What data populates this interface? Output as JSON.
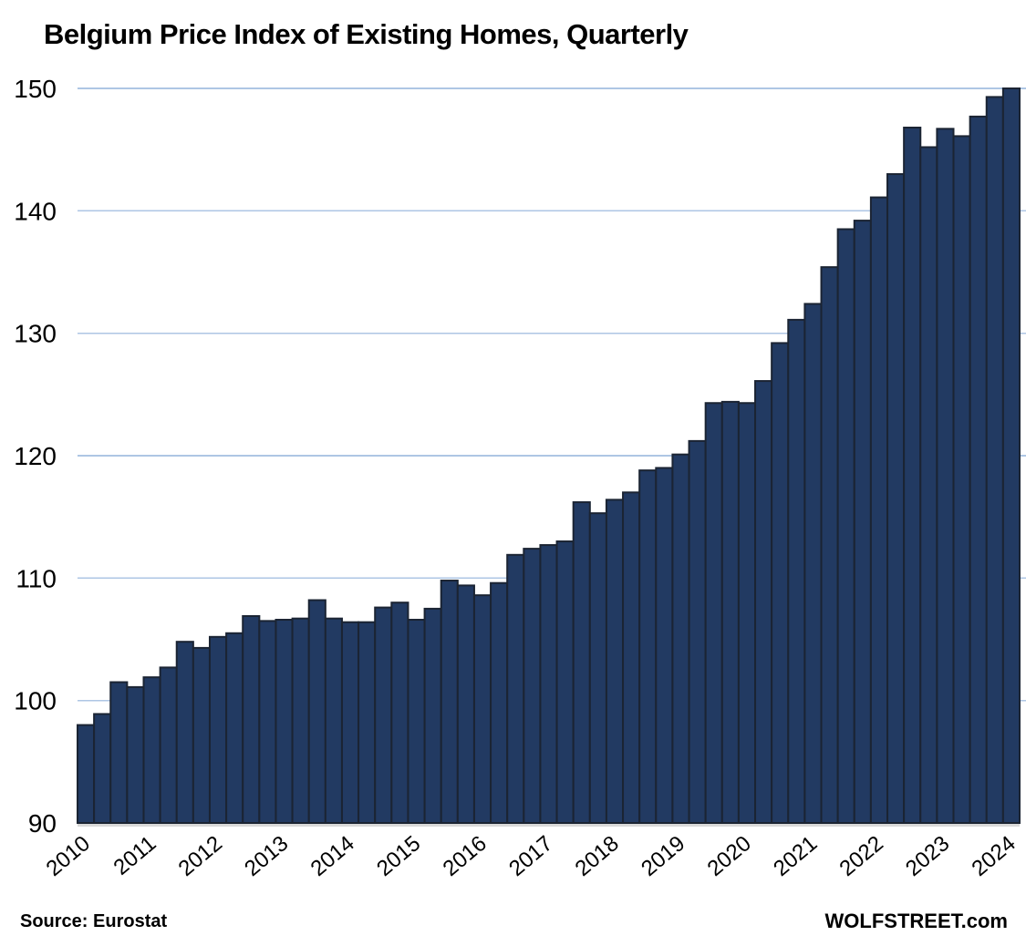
{
  "page": {
    "title": "Belgium Price Index of Existing Homes, Quarterly",
    "source": "Source: Eurostat",
    "brand": "WOLFSTREET.com"
  },
  "chart_data": {
    "type": "bar",
    "title": "Belgium Price Index of Existing Homes, Quarterly",
    "xlabel": "",
    "ylabel": "",
    "ylim": [
      90,
      150
    ],
    "yticks": [
      90,
      100,
      110,
      120,
      130,
      140,
      150
    ],
    "grid": "horizontal",
    "legend": "none",
    "x_tick_labels": [
      "2010",
      "2011",
      "2012",
      "2013",
      "2014",
      "2015",
      "2016",
      "2017",
      "2018",
      "2019",
      "2020",
      "2021",
      "2022",
      "2023",
      "2024"
    ],
    "categories": [
      "2010 Q1",
      "2010 Q2",
      "2010 Q3",
      "2010 Q4",
      "2011 Q1",
      "2011 Q2",
      "2011 Q3",
      "2011 Q4",
      "2012 Q1",
      "2012 Q2",
      "2012 Q3",
      "2012 Q4",
      "2013 Q1",
      "2013 Q2",
      "2013 Q3",
      "2013 Q4",
      "2014 Q1",
      "2014 Q2",
      "2014 Q3",
      "2014 Q4",
      "2015 Q1",
      "2015 Q2",
      "2015 Q3",
      "2015 Q4",
      "2016 Q1",
      "2016 Q2",
      "2016 Q3",
      "2016 Q4",
      "2017 Q1",
      "2017 Q2",
      "2017 Q3",
      "2017 Q4",
      "2018 Q1",
      "2018 Q2",
      "2018 Q3",
      "2018 Q4",
      "2019 Q1",
      "2019 Q2",
      "2019 Q3",
      "2019 Q4",
      "2020 Q1",
      "2020 Q2",
      "2020 Q3",
      "2020 Q4",
      "2021 Q1",
      "2021 Q2",
      "2021 Q3",
      "2021 Q4",
      "2022 Q1",
      "2022 Q2",
      "2022 Q3",
      "2022 Q4",
      "2023 Q1",
      "2023 Q2",
      "2023 Q3",
      "2023 Q4",
      "2024 Q1"
    ],
    "values": [
      98.0,
      98.9,
      101.5,
      101.1,
      101.9,
      102.7,
      104.8,
      104.3,
      105.2,
      105.5,
      106.9,
      106.5,
      106.6,
      106.7,
      108.2,
      106.7,
      106.4,
      106.4,
      107.6,
      108.0,
      106.6,
      107.5,
      109.8,
      109.4,
      108.6,
      109.6,
      111.9,
      112.4,
      112.7,
      113.0,
      116.2,
      115.3,
      116.4,
      117.0,
      118.8,
      119.0,
      120.1,
      121.2,
      124.3,
      124.4,
      124.3,
      126.1,
      129.2,
      131.1,
      132.4,
      135.4,
      138.5,
      139.2,
      141.1,
      143.0,
      146.8,
      145.2,
      146.7,
      146.1,
      147.7,
      149.3,
      150.0
    ],
    "bar_color": "#223A62",
    "bar_border_color": "#1B2433",
    "gridline_color": "#AEC6E4",
    "baseline_color": "#D9D9D9",
    "text_color": "#000000"
  }
}
